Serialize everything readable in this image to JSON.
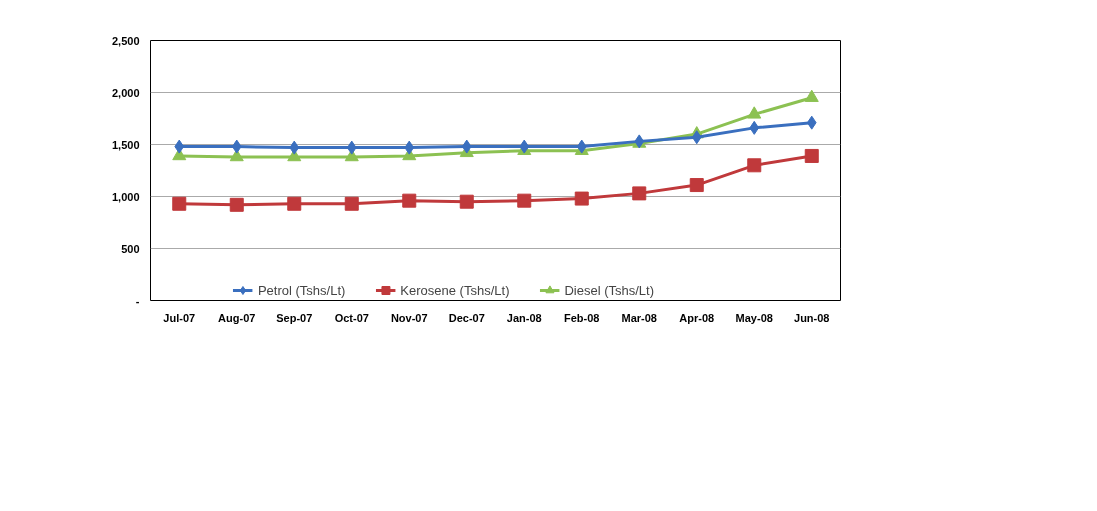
{
  "chart_data": {
    "type": "line",
    "categories": [
      "Jul-07",
      "Aug-07",
      "Sep-07",
      "Oct-07",
      "Nov-07",
      "Dec-07",
      "Jan-08",
      "Feb-08",
      "Mar-08",
      "Apr-08",
      "May-08",
      "Jun-08"
    ],
    "series": [
      {
        "name": "Petrol (Tshs/Lt)",
        "color": "#3a6fbf",
        "marker": "diamond",
        "values": [
          1480,
          1480,
          1470,
          1470,
          1470,
          1480,
          1480,
          1480,
          1530,
          1570,
          1660,
          1710
        ]
      },
      {
        "name": "Kerosene (Tshs/Lt)",
        "color": "#c0393b",
        "marker": "square",
        "values": [
          930,
          920,
          930,
          930,
          960,
          950,
          960,
          980,
          1030,
          1110,
          1300,
          1390
        ]
      },
      {
        "name": "Diesel (Tshs/Lt)",
        "color": "#8cc152",
        "marker": "triangle",
        "values": [
          1390,
          1380,
          1380,
          1380,
          1390,
          1420,
          1440,
          1440,
          1510,
          1600,
          1790,
          1950
        ]
      }
    ],
    "ylim": [
      0,
      2500
    ],
    "yticks": [
      {
        "value": 0,
        "label": "-"
      },
      500,
      {
        "value": 1000,
        "label": "1,000"
      },
      {
        "value": 1500,
        "label": "1,500"
      },
      {
        "value": 2000,
        "label": "2,000"
      },
      {
        "value": 2500,
        "label": "2,500"
      }
    ],
    "grid": "y",
    "legend": "bottom",
    "line_style": "solid"
  }
}
